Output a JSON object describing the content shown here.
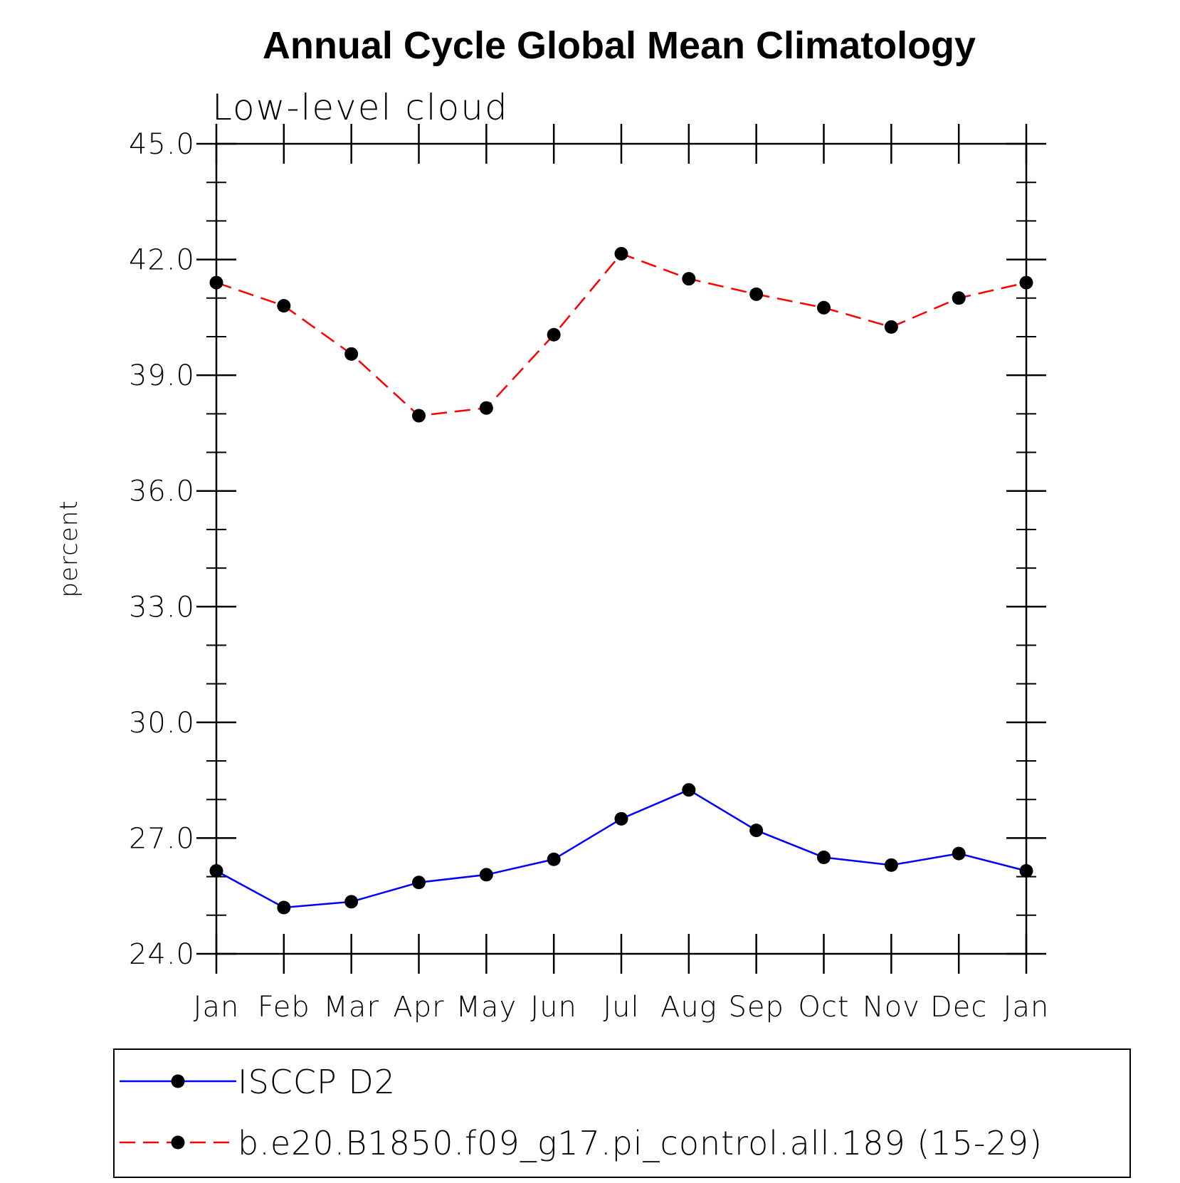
{
  "chart_data": {
    "type": "line",
    "title": "Annual Cycle Global Mean Climatology",
    "subtitle": "Low-level cloud",
    "ylabel": "percent",
    "xlabel": "",
    "ylim": [
      24.0,
      45.0
    ],
    "yticks": [
      "24.0",
      "27.0",
      "30.0",
      "33.0",
      "36.0",
      "39.0",
      "42.0",
      "45.0"
    ],
    "categories": [
      "Jan",
      "Feb",
      "Mar",
      "Apr",
      "May",
      "Jun",
      "Jul",
      "Aug",
      "Sep",
      "Oct",
      "Nov",
      "Dec",
      "Jan"
    ],
    "series": [
      {
        "name": "ISCCP D2",
        "color": "#0000ff",
        "line_style": "solid",
        "marker": "filled-circle",
        "values": [
          26.15,
          25.2,
          25.35,
          25.85,
          26.05,
          26.45,
          27.5,
          28.25,
          27.2,
          26.5,
          26.3,
          26.6,
          26.15
        ]
      },
      {
        "name": "b.e20.B1850.f09_g17.pi_control.all.189 (15-29)",
        "color": "#ff0000",
        "line_style": "dashed",
        "marker": "filled-circle",
        "values": [
          41.4,
          40.8,
          39.55,
          37.95,
          38.15,
          40.05,
          42.15,
          41.5,
          41.1,
          40.75,
          40.25,
          41.0,
          41.4
        ]
      }
    ],
    "legend_position": "bottom",
    "grid": false
  }
}
